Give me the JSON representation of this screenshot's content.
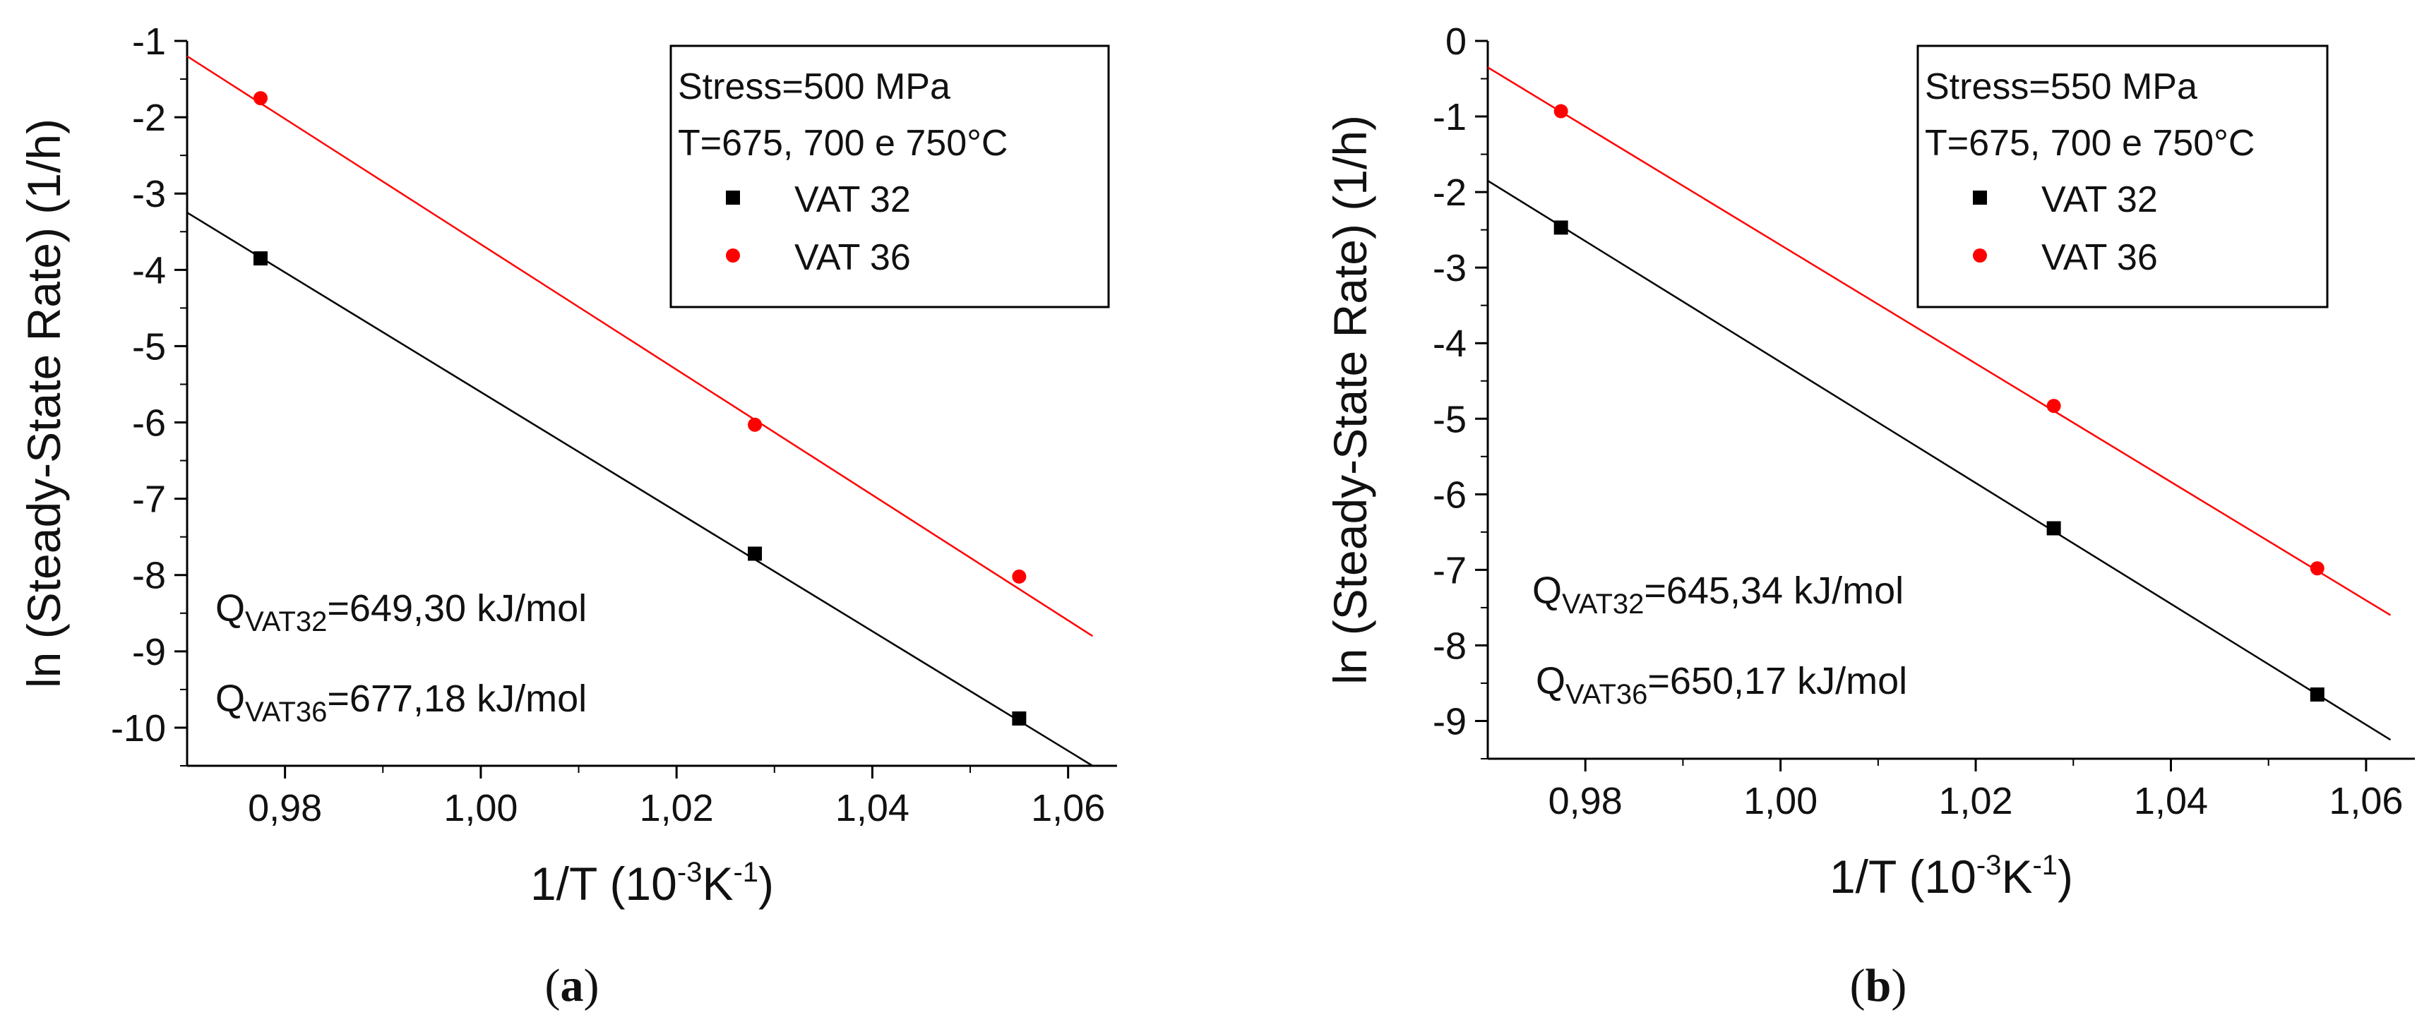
{
  "figure": {
    "panel_labels": [
      {
        "open": "(",
        "letter": "a",
        "close": ")"
      },
      {
        "open": "(",
        "letter": "b",
        "close": ")"
      }
    ],
    "colors": {
      "VAT 32": "#000000",
      "VAT 36": "#ff0000"
    }
  },
  "chart_data": [
    {
      "type": "scatter",
      "xlabel": {
        "main": "1/T (10",
        "sup1": "-3",
        "mid": "K",
        "sup2": "-1",
        "end": ")"
      },
      "ylabel": "ln (Steady-State Rate) (1/h)",
      "xlim": [
        0.97,
        1.065
      ],
      "ylim": [
        -10.5,
        -1
      ],
      "xticks": [
        0.98,
        1.0,
        1.02,
        1.04,
        1.06
      ],
      "xtick_labels": [
        "0,98",
        "1,00",
        "1,02",
        "1,04",
        "1,06"
      ],
      "yticks": [
        -1,
        -2,
        -3,
        -4,
        -5,
        -6,
        -7,
        -8,
        -9,
        -10
      ],
      "ytick_labels": [
        "-1",
        "-2",
        "-3",
        "-4",
        "-5",
        "-6",
        "-7",
        "-8",
        "-9",
        "-10"
      ],
      "legend": {
        "position": "top-right",
        "lines": [
          "Stress=500 MPa",
          "T=675, 700 e 750°C"
        ],
        "entries": [
          {
            "name": "VAT 32",
            "marker": "square",
            "color": "#000000"
          },
          {
            "name": "VAT 36",
            "marker": "circle",
            "color": "#ff0000"
          }
        ]
      },
      "series": [
        {
          "name": "VAT 32",
          "color": "#000000",
          "marker": "square",
          "x": [
            0.9775,
            1.028,
            1.055
          ],
          "y": [
            -3.85,
            -7.72,
            -9.88
          ],
          "fit": {
            "x": [
              0.97,
              1.0625
            ],
            "y": [
              -3.25,
              -10.5
            ]
          }
        },
        {
          "name": "VAT 36",
          "color": "#ff0000",
          "marker": "circle",
          "x": [
            0.9775,
            1.028,
            1.055
          ],
          "y": [
            -1.75,
            -6.03,
            -8.02
          ],
          "fit": {
            "x": [
              0.97,
              1.0625
            ],
            "y": [
              -1.2,
              -8.8
            ]
          }
        }
      ],
      "annotations": [
        {
          "q": "Q",
          "sub": "VAT32",
          "text": "=649,30 kJ/mol"
        },
        {
          "q": "Q",
          "sub": "VAT36",
          "text": "=677,18 kJ/mol"
        }
      ]
    },
    {
      "type": "scatter",
      "xlabel": {
        "main": "1/T (10",
        "sup1": "-3",
        "mid": "K",
        "sup2": "-1",
        "end": ")"
      },
      "ylabel": "ln (Steady-State Rate) (1/h)",
      "xlim": [
        0.97,
        1.065
      ],
      "ylim": [
        -9.5,
        0
      ],
      "xticks": [
        0.98,
        1.0,
        1.02,
        1.04,
        1.06
      ],
      "xtick_labels": [
        "0,98",
        "1,00",
        "1,02",
        "1,04",
        "1,06"
      ],
      "yticks": [
        0,
        -1,
        -2,
        -3,
        -4,
        -5,
        -6,
        -7,
        -8,
        -9
      ],
      "ytick_labels": [
        "0",
        "-1",
        "-2",
        "-3",
        "-4",
        "-5",
        "-6",
        "-7",
        "-8",
        "-9"
      ],
      "legend": {
        "position": "top-right",
        "lines": [
          "Stress=550 MPa",
          "T=675, 700 e 750°C"
        ],
        "entries": [
          {
            "name": "VAT 32",
            "marker": "square",
            "color": "#000000"
          },
          {
            "name": "VAT 36",
            "marker": "circle",
            "color": "#ff0000"
          }
        ]
      },
      "series": [
        {
          "name": "VAT 32",
          "color": "#000000",
          "marker": "square",
          "x": [
            0.9775,
            1.028,
            1.055
          ],
          "y": [
            -2.47,
            -6.45,
            -8.65
          ],
          "fit": {
            "x": [
              0.97,
              1.0625
            ],
            "y": [
              -1.85,
              -9.25
            ]
          }
        },
        {
          "name": "VAT 36",
          "color": "#ff0000",
          "marker": "circle",
          "x": [
            0.9775,
            1.028,
            1.055
          ],
          "y": [
            -0.93,
            -4.83,
            -6.98
          ],
          "fit": {
            "x": [
              0.97,
              1.0625
            ],
            "y": [
              -0.35,
              -7.6
            ]
          }
        }
      ],
      "annotations": [
        {
          "q": "Q",
          "sub": "VAT32",
          "text": "=645,34 kJ/mol"
        },
        {
          "q": "Q",
          "sub": "VAT36",
          "text": "=650,17 kJ/mol"
        }
      ]
    }
  ]
}
